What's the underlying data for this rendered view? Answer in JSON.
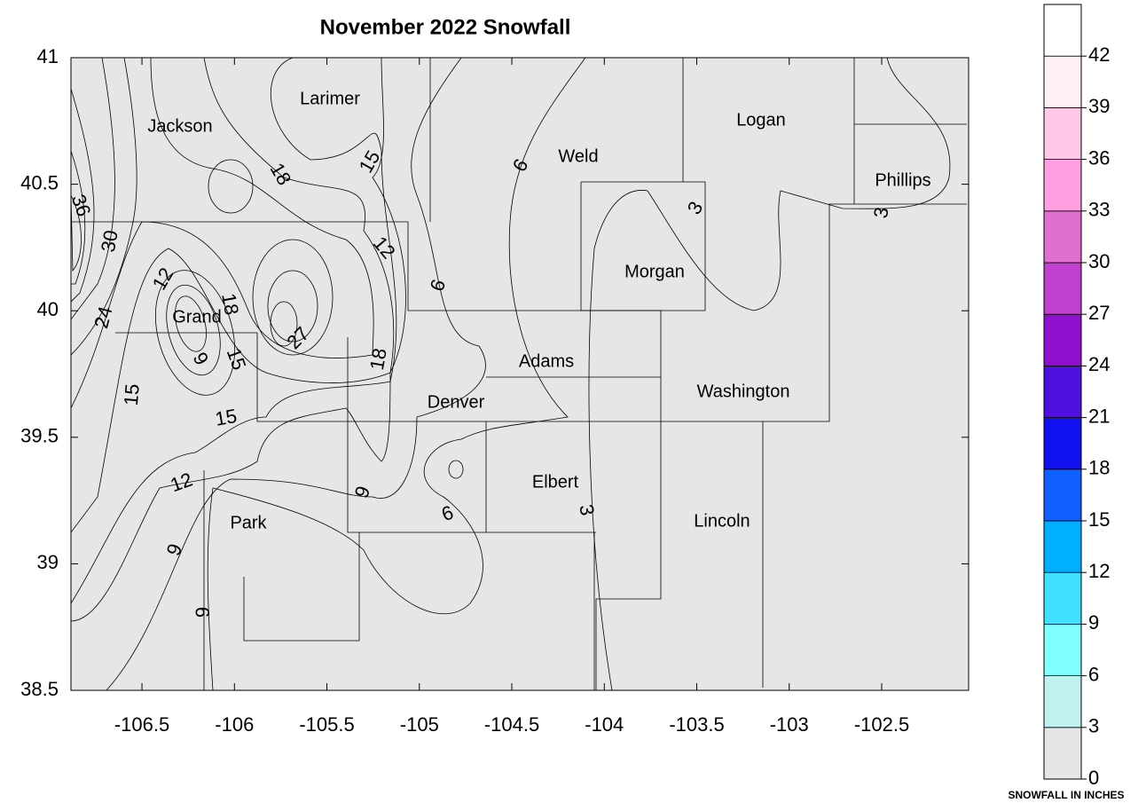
{
  "map": {
    "title": "November 2022 Snowfall",
    "xlim": [
      -106.884,
      -102.03
    ],
    "ylim": [
      38.5,
      41
    ],
    "xticks": [
      -106.5,
      -106,
      -105.5,
      -105,
      -104.5,
      -104,
      -103.5,
      -103,
      -102.5
    ],
    "yticks": [
      38.5,
      39,
      39.5,
      40,
      40.5,
      41
    ],
    "counties": [
      "Jackson",
      "Larimer",
      "Weld",
      "Logan",
      "Phillips",
      "Morgan",
      "Grand",
      "Adams",
      "Washington",
      "Denver",
      "Elbert",
      "Lincoln",
      "Park"
    ],
    "contour_labels": [
      36,
      30,
      24,
      15,
      12,
      18,
      9,
      15,
      15,
      12,
      9,
      9,
      18,
      15,
      12,
      27,
      18,
      9,
      6,
      6,
      6,
      3,
      3,
      3
    ]
  },
  "legend": {
    "title": "SNOWFALL IN INCHES",
    "lim": [
      0,
      45
    ],
    "levels": [
      0,
      3,
      6,
      9,
      12,
      15,
      18,
      21,
      24,
      27,
      30,
      33,
      36,
      39,
      42
    ],
    "colors": [
      "#e6e6e6",
      "#c0f0f0",
      "#80ffff",
      "#40e0ff",
      "#00b0ff",
      "#1060ff",
      "#1010f0",
      "#5010e0",
      "#9010d0",
      "#c040d0",
      "#e070d0",
      "#ffa0e0",
      "#ffc8e8",
      "#fff0f8",
      "#ffffff"
    ]
  }
}
